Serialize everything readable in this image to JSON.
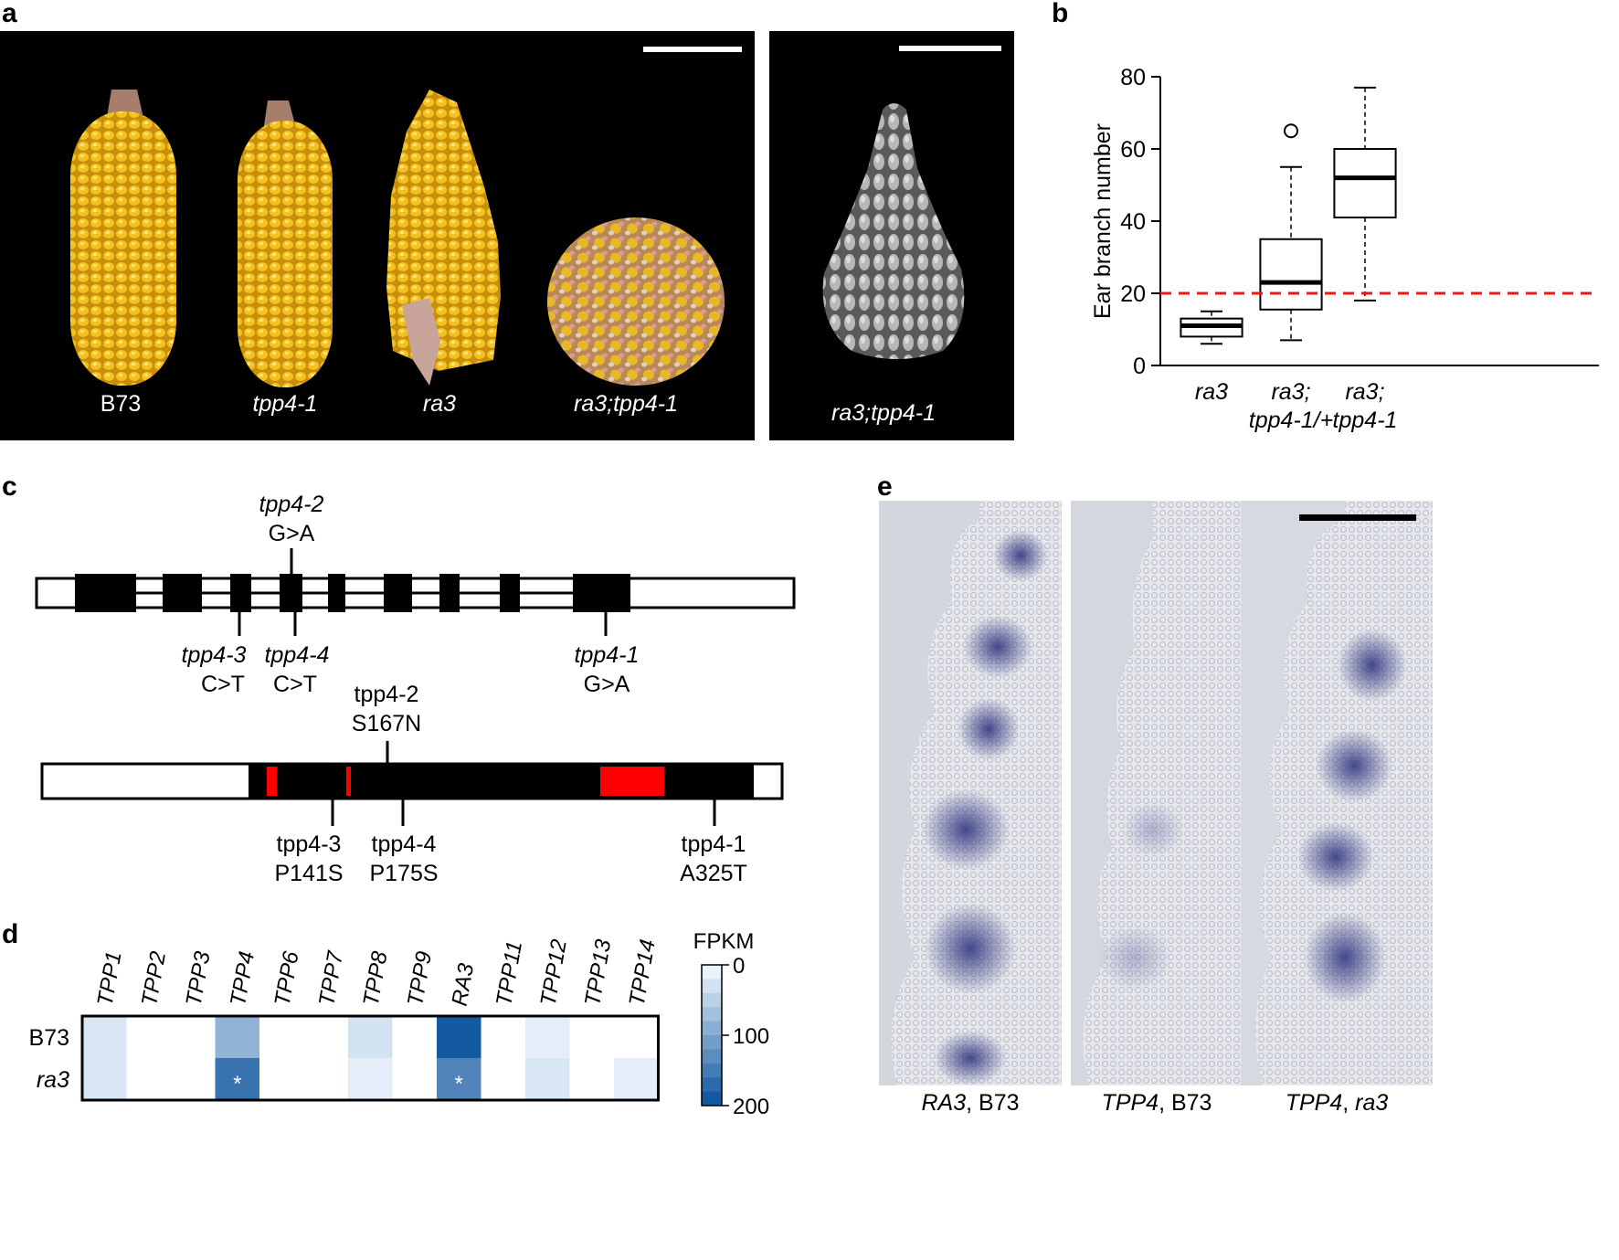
{
  "panel_a": {
    "label": "a",
    "ear_labels": [
      {
        "text": "B73",
        "italic": false
      },
      {
        "text": "tpp4-1",
        "italic": true
      },
      {
        "text": "ra3",
        "italic": true
      },
      {
        "text": "ra3;tpp4-1",
        "italic": true
      }
    ],
    "sem_label": "ra3;tpp4-1"
  },
  "panel_b": {
    "label": "b",
    "chart_data": {
      "type": "box",
      "ylabel": "Ear branch number",
      "ylim": [
        0,
        80
      ],
      "yticks": [
        0,
        20,
        40,
        60,
        80
      ],
      "reference_line": 20,
      "reference_color": "#e8191e",
      "categories": [
        {
          "line1": "ra3",
          "line2": ""
        },
        {
          "line1": "ra3;",
          "line2": "tpp4-1/+"
        },
        {
          "line1": "ra3;",
          "line2": "tpp4-1"
        }
      ],
      "boxes": [
        {
          "whisker_low": 6,
          "q1": 8,
          "median": 11,
          "q3": 13,
          "whisker_high": 15,
          "outliers": []
        },
        {
          "whisker_low": 7,
          "q1": 15.5,
          "median": 23,
          "q3": 35,
          "whisker_high": 55,
          "outliers": [
            65
          ]
        },
        {
          "whisker_low": 18,
          "q1": 41,
          "median": 52,
          "q3": 60,
          "whisker_high": 77,
          "outliers": []
        }
      ]
    }
  },
  "panel_c": {
    "label": "c",
    "gene_above": {
      "name": "tpp4-2",
      "change": "G>A"
    },
    "gene_below": [
      {
        "name": "tpp4-3",
        "change": "C>T"
      },
      {
        "name": "tpp4-4",
        "change": "C>T"
      },
      {
        "name": "tpp4-1",
        "change": "G>A"
      }
    ],
    "protein_above": {
      "name": "tpp4-2",
      "change": "S167N"
    },
    "protein_below": [
      {
        "name": "tpp4-3",
        "change": "P141S"
      },
      {
        "name": "tpp4-4",
        "change": "P175S"
      },
      {
        "name": "tpp4-1",
        "change": "A325T"
      }
    ]
  },
  "panel_d": {
    "label": "d",
    "chart_data": {
      "type": "heatmap",
      "columns": [
        "TPP1",
        "TPP2",
        "TPP3",
        "TPP4",
        "TPP6",
        "TPP7",
        "TPP8",
        "TPP9",
        "RA3",
        "TPP11",
        "TPP12",
        "TPP13",
        "TPP14"
      ],
      "rows": [
        {
          "name": "B73",
          "italic": false,
          "values": [
            25,
            0,
            0,
            85,
            0,
            0,
            30,
            0,
            190,
            0,
            15,
            0,
            0
          ]
        },
        {
          "name": "ra3",
          "italic": true,
          "values": [
            25,
            0,
            0,
            160,
            0,
            0,
            15,
            0,
            140,
            0,
            25,
            0,
            15
          ]
        }
      ],
      "significant": [
        [
          1,
          3
        ],
        [
          1,
          8
        ]
      ],
      "marker": "*",
      "colorbar_title": "FPKM",
      "colorbar_ticks": [
        "0",
        "100",
        "200"
      ],
      "value_range": [
        0,
        200
      ],
      "color_low": "#f7fbff",
      "color_high": "#08519c"
    }
  },
  "panel_e": {
    "label": "e",
    "captions": [
      {
        "gene": "RA3",
        "background": ", B73"
      },
      {
        "gene": "TPP4",
        "background": ", B73"
      },
      {
        "gene": "TPP4",
        "background": ", ra3"
      }
    ]
  }
}
